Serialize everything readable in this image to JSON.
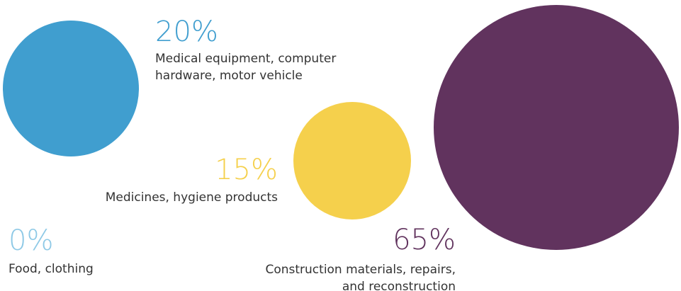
{
  "chart_data": {
    "type": "bubble",
    "items": [
      {
        "value": 20,
        "pct_label": "20%",
        "label_lines": [
          "Medical equipment, computer",
          "hardware, motor vehicle"
        ],
        "color": "#409ECF"
      },
      {
        "value": 15,
        "pct_label": "15%",
        "label_lines": [
          "Medicines, hygiene products"
        ],
        "color": "#F5D04C",
        "pct_color": "#F5D04C"
      },
      {
        "value": 0,
        "pct_label": "0%",
        "label_lines": [
          "Food, clothing"
        ],
        "color": "#8EC9E6"
      },
      {
        "value": 65,
        "pct_label": "65%",
        "label_lines": [
          "Construction materials, repairs,",
          "and reconstruction"
        ],
        "color": "#61335E"
      }
    ]
  }
}
